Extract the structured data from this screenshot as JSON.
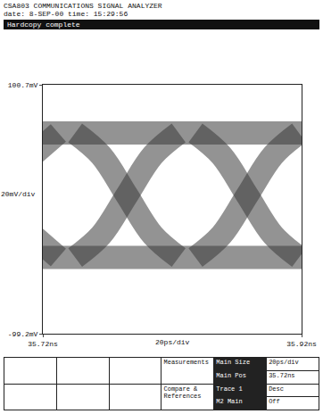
{
  "header": [
    "CSA803 COMMUNICATIONS SIGNAL ANALYZER",
    "date: 8-SEP-00 time: 15:29:56"
  ],
  "status": "Hardcopy complete",
  "chart_data": {
    "type": "line",
    "xlim": [
      35.72,
      35.92
    ],
    "ylim": [
      -99.2,
      100.7
    ],
    "xticks": [
      {
        "value": 35.72,
        "label": "35.72ns"
      },
      {
        "value": 35.92,
        "label": "35.92ns"
      }
    ],
    "yticks": [
      {
        "value": 100.7,
        "label": "100.7mV"
      },
      {
        "value": -99.2,
        "label": "-99.2mV"
      }
    ],
    "grid": false,
    "annotations": [
      {
        "text": "20mV/div",
        "axis": "y"
      },
      {
        "text": "20ps/div",
        "axis": "x"
      }
    ],
    "series": [
      {
        "color": "#3a3a3a",
        "x": [
          35.72,
          35.92
        ],
        "values": [
          62,
          62
        ]
      },
      {
        "color": "#3a3a3a",
        "x": [
          35.72,
          35.92
        ],
        "values": [
          -38,
          -38
        ]
      },
      {
        "color": "#3a3a3a",
        "x": [
          35.745,
          35.765,
          35.785,
          35.805,
          35.825
        ],
        "values": [
          -38,
          -20,
          12,
          44,
          62
        ]
      },
      {
        "color": "#3a3a3a",
        "x": [
          35.745,
          35.765,
          35.785,
          35.805,
          35.825
        ],
        "values": [
          62,
          44,
          12,
          -20,
          -38
        ]
      },
      {
        "color": "#3a3a3a",
        "x": [
          35.838,
          35.858,
          35.878,
          35.898,
          35.918
        ],
        "values": [
          -38,
          -20,
          12,
          44,
          62
        ]
      },
      {
        "color": "#3a3a3a",
        "x": [
          35.838,
          35.858,
          35.878,
          35.898,
          35.918
        ],
        "values": [
          62,
          44,
          12,
          -20,
          -38
        ]
      },
      {
        "color": "#3a3a3a",
        "x": [
          35.712,
          35.732
        ],
        "values": [
          44,
          62
        ]
      },
      {
        "color": "#3a3a3a",
        "x": [
          35.712,
          35.732
        ],
        "values": [
          -20,
          -38
        ]
      }
    ]
  },
  "panel": [
    {
      "label": "Measurements",
      "items": [
        "Main Size",
        "20ps/div",
        "Main Pos",
        "35.72ns"
      ]
    },
    {
      "label": "Compare & References",
      "items": [
        "Trace 1",
        "Desc",
        "M2 Main",
        "Off"
      ]
    }
  ]
}
